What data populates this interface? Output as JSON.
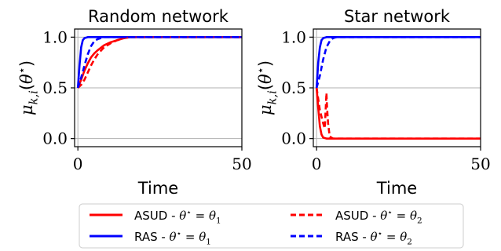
{
  "chart_data": [
    {
      "type": "line",
      "title": "Random network",
      "xlabel": "Time",
      "ylabel": "μ_{k,i}(θ*)",
      "xlim": [
        -1,
        50
      ],
      "ylim": [
        -0.08,
        1.08
      ],
      "xticks": [
        0,
        50
      ],
      "yticks": [
        0.0,
        0.5,
        1.0
      ],
      "xtick_labels": [
        "0",
        "50"
      ],
      "ytick_labels": [
        "0.0",
        "0.5",
        "1.0"
      ],
      "grid": true,
      "series": [
        {
          "name": "ASUD - θ* = θ1",
          "color": "#ff0000",
          "style": "solid",
          "x": [
            0,
            1,
            2,
            3,
            4,
            5,
            6,
            8,
            10,
            12,
            14,
            16,
            20,
            30,
            50
          ],
          "y": [
            0.5,
            0.58,
            0.67,
            0.74,
            0.8,
            0.84,
            0.87,
            0.92,
            0.95,
            0.97,
            0.99,
            1.0,
            1.0,
            1.0,
            1.0
          ]
        },
        {
          "name": "RAS - θ* = θ1",
          "color": "#0000ff",
          "style": "solid",
          "x": [
            0,
            0.5,
            1,
            1.5,
            2,
            3,
            4,
            50
          ],
          "y": [
            0.5,
            0.72,
            0.9,
            0.97,
            0.99,
            1.0,
            1.0,
            1.0
          ]
        },
        {
          "name": "ASUD - θ* = θ2",
          "color": "#ff0000",
          "style": "dashed",
          "x": [
            0,
            1,
            2,
            3,
            4,
            5,
            6,
            8,
            10,
            12,
            14,
            16,
            20,
            30,
            50
          ],
          "y": [
            0.5,
            0.53,
            0.58,
            0.65,
            0.72,
            0.78,
            0.83,
            0.9,
            0.94,
            0.97,
            0.99,
            1.0,
            1.0,
            1.0,
            1.0
          ]
        },
        {
          "name": "RAS - θ* = θ2",
          "color": "#0000ff",
          "style": "dashed",
          "x": [
            0,
            1,
            2,
            3,
            4,
            5,
            6,
            8,
            50
          ],
          "y": [
            0.5,
            0.6,
            0.72,
            0.83,
            0.91,
            0.96,
            0.98,
            1.0,
            1.0
          ]
        }
      ]
    },
    {
      "type": "line",
      "title": "Star network",
      "xlabel": "Time",
      "ylabel": "μ_{k,i}(θ*)",
      "xlim": [
        -1,
        50
      ],
      "ylim": [
        -0.08,
        1.08
      ],
      "xticks": [
        0,
        50
      ],
      "yticks": [
        0.0,
        0.5,
        1.0
      ],
      "xtick_labels": [
        "0",
        "50"
      ],
      "ytick_labels": [
        "0.0",
        "0.5",
        "1.0"
      ],
      "grid": true,
      "series": [
        {
          "name": "ASUD - θ* = θ1",
          "color": "#ff0000",
          "style": "solid",
          "x": [
            0,
            0.5,
            1,
            1.5,
            2,
            3,
            50
          ],
          "y": [
            0.5,
            0.3,
            0.12,
            0.04,
            0.01,
            0.0,
            0.0
          ]
        },
        {
          "name": "RAS - θ* = θ1",
          "color": "#0000ff",
          "style": "solid",
          "x": [
            0,
            0.5,
            1,
            1.5,
            2,
            3,
            50
          ],
          "y": [
            0.5,
            0.75,
            0.9,
            0.97,
            0.99,
            1.0,
            1.0
          ]
        },
        {
          "name": "ASUD - θ* = θ2",
          "color": "#ff0000",
          "style": "dashed",
          "x": [
            0,
            1,
            2,
            2.5,
            3,
            3.2,
            3.5,
            4,
            5,
            50
          ],
          "y": [
            0.5,
            0.28,
            0.15,
            0.1,
            0.45,
            0.3,
            0.15,
            0.02,
            0.0,
            0.0
          ]
        },
        {
          "name": "RAS - θ* = θ2",
          "color": "#0000ff",
          "style": "dashed",
          "x": [
            0,
            1,
            2,
            3,
            4,
            5,
            6,
            50
          ],
          "y": [
            0.5,
            0.62,
            0.78,
            0.9,
            0.96,
            0.99,
            1.0,
            1.0
          ]
        }
      ]
    }
  ],
  "legend": {
    "items": [
      {
        "label": "ASUD - θ* = θ1",
        "color": "#ff0000",
        "style": "solid"
      },
      {
        "label": "ASUD - θ* = θ2",
        "color": "#ff0000",
        "style": "dashed"
      },
      {
        "label": "RAS - θ* = θ1",
        "color": "#0000ff",
        "style": "solid"
      },
      {
        "label": "RAS - θ* = θ2",
        "color": "#0000ff",
        "style": "dashed"
      }
    ]
  }
}
